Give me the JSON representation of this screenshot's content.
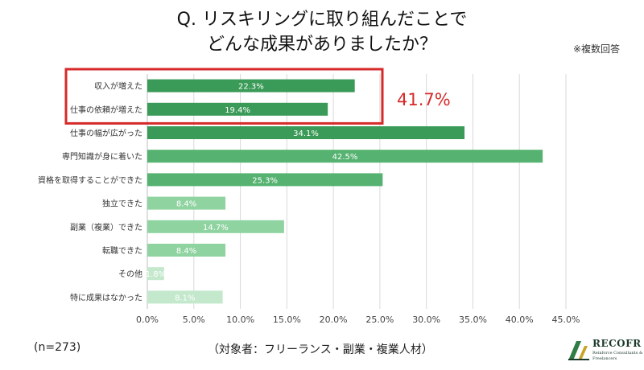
{
  "header": {
    "title_line1": "Q. リスキリングに取り組んだことで",
    "title_line2": "どんな成果がありましたか？",
    "note": "※複数回答"
  },
  "footer": {
    "sample": "(n=273)",
    "target": "（対象者：フリーランス・副業・複業人材）"
  },
  "highlight": {
    "label": "41.7%",
    "color": "#d62a2a"
  },
  "logo": {
    "name": "RECOFR",
    "sub1": "Reinforce Consultants &",
    "sub2": "Freelancers"
  },
  "colors": {
    "bar_dark": "#3a9a57",
    "bar_mid": "#55b270",
    "bar_light": "#8fd3a0",
    "bar_pale": "#c3e8cc",
    "grid": "#d9d9d9"
  },
  "chart_data": {
    "type": "bar",
    "orientation": "horizontal",
    "categories": [
      "収入が増えた",
      "仕事の依頼が増えた",
      "仕事の幅が広がった",
      "専門知識が身に着いた",
      "資格を取得することができた",
      "独立できた",
      "副業（複業）できた",
      "転職できた",
      "その他",
      "特に成果はなかった"
    ],
    "values": [
      22.3,
      19.4,
      34.1,
      42.5,
      25.3,
      8.4,
      14.7,
      8.4,
      1.8,
      8.1
    ],
    "value_labels": [
      "22.3%",
      "19.4%",
      "34.1%",
      "42.5%",
      "25.3%",
      "8.4%",
      "14.7%",
      "8.4%",
      "1.8%",
      "8.1%"
    ],
    "shades": [
      "dark",
      "dark",
      "dark",
      "mid",
      "mid",
      "light",
      "light",
      "light",
      "pale",
      "pale"
    ],
    "xlim": [
      0,
      45
    ],
    "x_ticks": [
      "0.0%",
      "5.0%",
      "10.0%",
      "15.0%",
      "20.0%",
      "25.0%",
      "30.0%",
      "35.0%",
      "40.0%",
      "45.0%"
    ],
    "grid": true,
    "legend": "none"
  }
}
